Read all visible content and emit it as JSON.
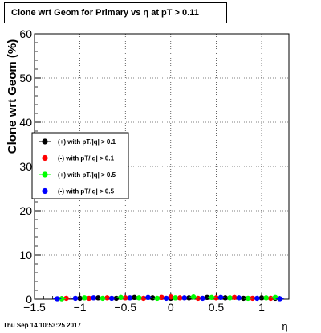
{
  "title": "Clone wrt Geom for Primary vs   η at pT > 0.11",
  "footer": "Thu Sep 14 10:53:25 2017",
  "chart_data": {
    "type": "scatter",
    "title": "Clone wrt Geom for Primary vs   η at pT > 0.11",
    "xlabel": "η",
    "ylabel": "Clone wrt Geom (%)",
    "xlim": [
      -1.5,
      1.3
    ],
    "ylim": [
      0,
      60
    ],
    "x_ticks": [
      -1.5,
      -1,
      -0.5,
      0,
      0.5,
      1
    ],
    "x_tick_labels": [
      "−1.5",
      "−1",
      "−0.5",
      "0",
      "0.5",
      "1"
    ],
    "y_ticks": [
      0,
      10,
      20,
      30,
      40,
      50,
      60
    ],
    "grid": true,
    "legend_position": "left-middle",
    "series": [
      {
        "name": "(+) with pT/|q| > 0.1",
        "color": "#000000",
        "x": [
          -1.2,
          -1.0,
          -0.8,
          -0.6,
          -0.4,
          -0.2,
          0.0,
          0.2,
          0.4,
          0.6,
          0.8,
          1.0,
          1.15
        ],
        "y": [
          0.1,
          0.2,
          0.3,
          0.2,
          0.4,
          0.3,
          0.2,
          0.3,
          0.4,
          0.3,
          0.2,
          0.3,
          0.2
        ]
      },
      {
        "name": "(-) with pT/|q| > 0.1",
        "color": "#ff0000",
        "x": [
          -1.15,
          -0.9,
          -0.7,
          -0.5,
          -0.3,
          -0.1,
          0.0,
          0.1,
          0.3,
          0.5,
          0.7,
          0.9,
          1.1
        ],
        "y": [
          0.2,
          0.2,
          0.3,
          0.3,
          0.2,
          0.4,
          0.5,
          0.3,
          0.2,
          0.3,
          0.4,
          0.2,
          0.2
        ]
      },
      {
        "name": "(+) with pT/|q| > 0.5",
        "color": "#00ff00",
        "x": [
          -1.2,
          -0.95,
          -0.75,
          -0.55,
          -0.35,
          -0.15,
          0.05,
          0.25,
          0.45,
          0.65,
          0.85,
          1.05,
          1.15
        ],
        "y": [
          0.1,
          0.3,
          0.2,
          0.4,
          0.3,
          0.2,
          0.3,
          0.5,
          0.4,
          0.3,
          0.2,
          0.3,
          0.4
        ]
      },
      {
        "name": "(-) with pT/|q| > 0.5",
        "color": "#0000ff",
        "x": [
          -1.25,
          -1.05,
          -0.85,
          -0.65,
          -0.45,
          -0.25,
          -0.05,
          0.15,
          0.35,
          0.55,
          0.75,
          0.95,
          1.2
        ],
        "y": [
          0.1,
          0.2,
          0.3,
          0.2,
          0.3,
          0.4,
          0.2,
          0.3,
          0.2,
          0.4,
          0.3,
          0.2,
          0.1
        ]
      }
    ]
  }
}
